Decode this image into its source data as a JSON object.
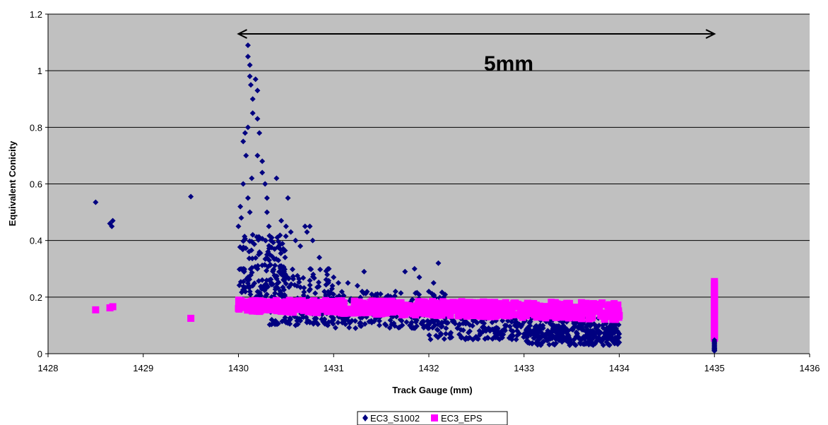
{
  "chart_data": {
    "type": "scatter",
    "title": "",
    "xlabel": "Track Gauge (mm)",
    "ylabel": "Equivalent Conicity",
    "xlim": [
      1428,
      1436
    ],
    "ylim": [
      0,
      1.2
    ],
    "xticks": [
      "1428",
      "1429",
      "1430",
      "1431",
      "1432",
      "1433",
      "1434",
      "1435",
      "1436"
    ],
    "yticks": [
      "0",
      "0.2",
      "0.4",
      "0.6",
      "0.8",
      "1",
      "1.2"
    ],
    "grid": "horizontal",
    "plot_background": "#c0c0c0",
    "legend_position": "bottom",
    "annotation": {
      "text": "5mm",
      "arrow_from_x": 1430,
      "arrow_to_x": 1435,
      "arrow_y": 1.13
    },
    "series": [
      {
        "name": "EC3_S1002",
        "marker": "diamond",
        "color": "#000080",
        "points": [
          [
            1428.5,
            0.535
          ],
          [
            1428.65,
            0.46
          ],
          [
            1428.68,
            0.47
          ],
          [
            1428.67,
            0.45
          ],
          [
            1429.5,
            0.555
          ],
          [
            1430.0,
            0.45
          ],
          [
            1430.02,
            0.52
          ],
          [
            1430.03,
            0.48
          ],
          [
            1430.05,
            0.6
          ],
          [
            1430.05,
            0.75
          ],
          [
            1430.07,
            0.78
          ],
          [
            1430.08,
            0.7
          ],
          [
            1430.1,
            0.8
          ],
          [
            1430.1,
            1.09
          ],
          [
            1430.1,
            1.05
          ],
          [
            1430.12,
            1.02
          ],
          [
            1430.12,
            0.98
          ],
          [
            1430.13,
            0.95
          ],
          [
            1430.15,
            0.9
          ],
          [
            1430.15,
            0.85
          ],
          [
            1430.14,
            0.62
          ],
          [
            1430.1,
            0.55
          ],
          [
            1430.12,
            0.5
          ],
          [
            1430.15,
            0.42
          ],
          [
            1430.18,
            0.97
          ],
          [
            1430.2,
            0.93
          ],
          [
            1430.2,
            0.83
          ],
          [
            1430.22,
            0.78
          ],
          [
            1430.2,
            0.7
          ],
          [
            1430.25,
            0.68
          ],
          [
            1430.25,
            0.64
          ],
          [
            1430.28,
            0.6
          ],
          [
            1430.3,
            0.55
          ],
          [
            1430.3,
            0.5
          ],
          [
            1430.32,
            0.45
          ],
          [
            1430.35,
            0.41
          ],
          [
            1430.38,
            0.37
          ],
          [
            1430.4,
            0.62
          ],
          [
            1430.42,
            0.33
          ],
          [
            1430.45,
            0.31
          ],
          [
            1430.48,
            0.29
          ],
          [
            1430.45,
            0.47
          ],
          [
            1430.5,
            0.45
          ],
          [
            1430.52,
            0.55
          ],
          [
            1430.55,
            0.43
          ],
          [
            1430.6,
            0.4
          ],
          [
            1430.65,
            0.38
          ],
          [
            1430.7,
            0.45
          ],
          [
            1430.72,
            0.43
          ],
          [
            1430.75,
            0.45
          ],
          [
            1430.78,
            0.4
          ],
          [
            1430.85,
            0.34
          ],
          [
            1430.95,
            0.3
          ],
          [
            1431.0,
            0.27
          ],
          [
            1431.05,
            0.25
          ],
          [
            1431.15,
            0.25
          ],
          [
            1431.25,
            0.24
          ],
          [
            1431.3,
            0.22
          ],
          [
            1431.32,
            0.29
          ],
          [
            1431.4,
            0.21
          ],
          [
            1431.55,
            0.2
          ],
          [
            1431.65,
            0.22
          ],
          [
            1431.75,
            0.29
          ],
          [
            1431.85,
            0.3
          ],
          [
            1431.9,
            0.27
          ],
          [
            1432.05,
            0.25
          ],
          [
            1432.1,
            0.32
          ],
          [
            1432.0,
            0.22
          ],
          [
            1430.05,
            0.3
          ],
          [
            1430.1,
            0.27
          ],
          [
            1430.15,
            0.24
          ],
          [
            1430.2,
            0.3
          ],
          [
            1430.25,
            0.26
          ],
          [
            1430.3,
            0.35
          ],
          [
            1430.35,
            0.12
          ],
          [
            1430.4,
            0.11
          ],
          [
            1430.5,
            0.11
          ],
          [
            1430.6,
            0.1
          ],
          [
            1430.75,
            0.11
          ],
          [
            1430.9,
            0.12
          ],
          [
            1431.1,
            0.12
          ],
          [
            1431.4,
            0.11
          ],
          [
            1431.8,
            0.1
          ],
          [
            1432.0,
            0.09
          ],
          [
            1432.3,
            0.09
          ],
          [
            1432.6,
            0.08
          ],
          [
            1433.0,
            0.07
          ],
          [
            1433.4,
            0.06
          ],
          [
            1433.8,
            0.05
          ],
          [
            1434.0,
            0.04
          ],
          [
            1434.0,
            0.07
          ],
          [
            1433.7,
            0.08
          ],
          [
            1433.2,
            0.09
          ],
          [
            1432.8,
            0.1
          ],
          [
            1432.4,
            0.11
          ],
          [
            1435.0,
            0.015
          ],
          [
            1435.0,
            0.03
          ],
          [
            1435.0,
            0.045
          ]
        ]
      },
      {
        "name": "EC3_EPS",
        "marker": "square",
        "color": "#ff00ff",
        "points": [
          [
            1428.5,
            0.155
          ],
          [
            1428.65,
            0.162
          ],
          [
            1428.68,
            0.166
          ],
          [
            1429.5,
            0.125
          ],
          [
            1430.0,
            0.16
          ],
          [
            1430.1,
            0.16
          ],
          [
            1430.2,
            0.17
          ],
          [
            1430.3,
            0.175
          ],
          [
            1430.4,
            0.18
          ],
          [
            1430.5,
            0.17
          ],
          [
            1430.6,
            0.175
          ],
          [
            1430.8,
            0.165
          ],
          [
            1431.0,
            0.16
          ],
          [
            1431.3,
            0.16
          ],
          [
            1431.6,
            0.155
          ],
          [
            1432.0,
            0.15
          ],
          [
            1432.4,
            0.15
          ],
          [
            1432.8,
            0.145
          ],
          [
            1433.2,
            0.14
          ],
          [
            1433.6,
            0.14
          ],
          [
            1434.0,
            0.135
          ],
          [
            1435.0,
            0.06
          ],
          [
            1435.0,
            0.1
          ],
          [
            1435.0,
            0.15
          ],
          [
            1435.0,
            0.2
          ],
          [
            1435.0,
            0.255
          ]
        ],
        "bands": [
          {
            "x_start": 1430.0,
            "x_end": 1434.0,
            "low_start": 0.15,
            "high_start": 0.185,
            "low_end": 0.12,
            "high_end": 0.18
          },
          {
            "x_start": 1430.2,
            "x_end": 1431.0,
            "low_start": 0.14,
            "high_start": 0.2,
            "low_end": 0.14,
            "high_end": 0.18
          }
        ]
      }
    ],
    "s1002_cloud": [
      {
        "x_start": 1430.0,
        "x_end": 1430.5,
        "low": 0.2,
        "high": 0.42,
        "count": 140
      },
      {
        "x_start": 1430.3,
        "x_end": 1431.0,
        "low": 0.1,
        "high": 0.3,
        "count": 160
      },
      {
        "x_start": 1430.9,
        "x_end": 1432.2,
        "low": 0.09,
        "high": 0.22,
        "count": 200
      },
      {
        "x_start": 1432.0,
        "x_end": 1434.0,
        "low": 0.05,
        "high": 0.14,
        "count": 320
      },
      {
        "x_start": 1433.0,
        "x_end": 1434.0,
        "low": 0.03,
        "high": 0.1,
        "count": 180
      }
    ],
    "eps_cloud": [
      {
        "x_start": 1430.0,
        "x_end": 1434.0,
        "low": 0.12,
        "high": 0.19,
        "count": 700
      }
    ]
  }
}
